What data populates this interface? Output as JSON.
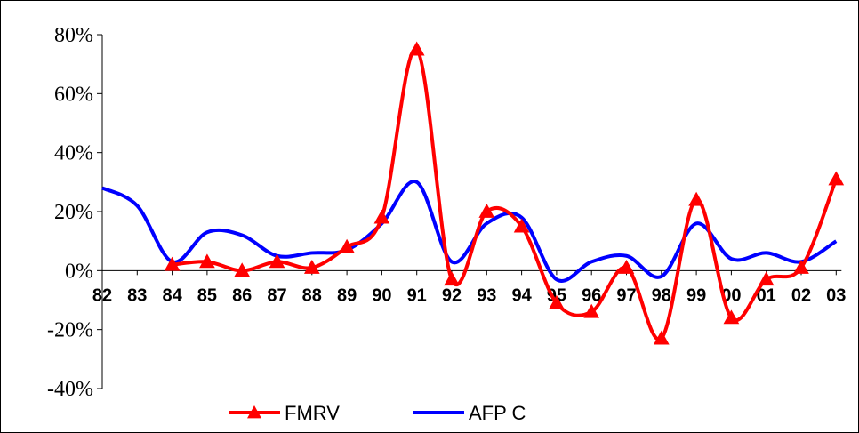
{
  "chart_data": {
    "type": "line",
    "title": "",
    "xlabel": "",
    "ylabel": "",
    "categories": [
      "82",
      "83",
      "84",
      "85",
      "86",
      "87",
      "88",
      "89",
      "90",
      "91",
      "92",
      "93",
      "94",
      "95",
      "96",
      "97",
      "98",
      "99",
      "00",
      "01",
      "02",
      "03"
    ],
    "ylim": [
      -40,
      80
    ],
    "yticks": [
      -40,
      -20,
      0,
      20,
      40,
      60,
      80
    ],
    "ytick_labels": [
      "-40%",
      "-20%",
      "0%",
      "20%",
      "40%",
      "60%",
      "80%"
    ],
    "grid": false,
    "legend_position": "bottom",
    "series": [
      {
        "name": "FMRV",
        "color": "#ff0000",
        "marker": "triangle",
        "values": [
          null,
          null,
          2,
          3,
          0,
          3,
          1,
          8,
          18,
          75,
          -3,
          20,
          15,
          -11,
          -14,
          1,
          -23,
          24,
          -16,
          -3,
          1,
          31
        ]
      },
      {
        "name": "AFP C",
        "color": "#0000ff",
        "marker": "none",
        "values": [
          28,
          22,
          3,
          13,
          12,
          5,
          6,
          7,
          16,
          30,
          3,
          16,
          18,
          -3,
          3,
          5,
          -2,
          16,
          4,
          6,
          3,
          10
        ]
      }
    ]
  }
}
